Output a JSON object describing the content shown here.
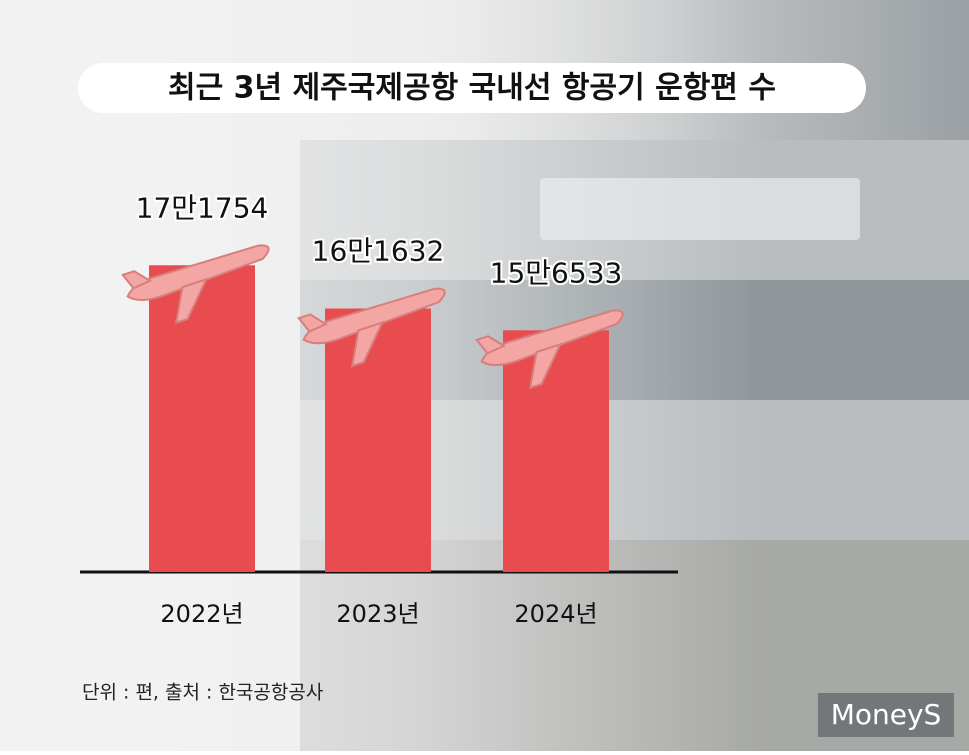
{
  "chart_data": {
    "type": "bar",
    "title": "최근 3년 제주국제공항 국내선 항공기 운항편 수",
    "categories": [
      "2022년",
      "2023년",
      "2024년"
    ],
    "values": [
      171754,
      161632,
      156533
    ],
    "value_labels": [
      "17만1754",
      "16만1632",
      "15만6533"
    ],
    "color": "#e84c4f",
    "ylim": [
      100000,
      180000
    ],
    "note": "단위 : 편, 출처 : 한국공항공사",
    "watermark": "MoneyS"
  }
}
